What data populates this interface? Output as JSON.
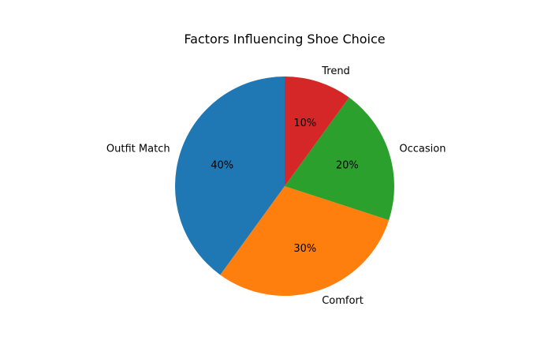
{
  "chart_data": {
    "type": "pie",
    "title": "Factors Influencing Shoe Choice",
    "start_angle_deg": 90,
    "direction": "counterclockwise",
    "slices": [
      {
        "label": "Outfit Match",
        "value": 40,
        "pct_label": "40%",
        "color": "#1f77b4"
      },
      {
        "label": "Comfort",
        "value": 30,
        "pct_label": "30%",
        "color": "#ff7f0e"
      },
      {
        "label": "Occasion",
        "value": 20,
        "pct_label": "20%",
        "color": "#2ca02c"
      },
      {
        "label": "Trend",
        "value": 10,
        "pct_label": "10%",
        "color": "#d62728"
      }
    ]
  }
}
